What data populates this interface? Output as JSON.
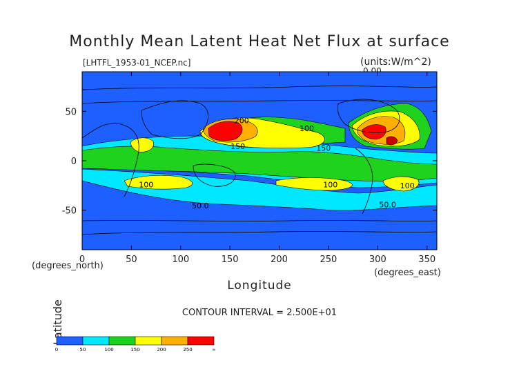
{
  "header": {
    "title": "Monthly Mean Latent Heat Net Flux at surface",
    "file_label": "[LHTFL_1953-01_NCEP.nc]",
    "units_label": "(units:W/m^2)",
    "max_label": "0.00"
  },
  "footer": {
    "contour_interval": "CONTOUR INTERVAL = 2.500E+01"
  },
  "chart_data": {
    "type": "heatmap",
    "title": "Monthly Mean Latent Heat Net Flux at surface",
    "xlabel": "Longitude",
    "ylabel": "Latitude",
    "x_unit_label": "(degrees_east)",
    "y_unit_label": "(degrees_north)",
    "xlim": [
      0,
      360
    ],
    "ylim": [
      -90,
      90
    ],
    "x_ticks": [
      0,
      50,
      100,
      150,
      200,
      250,
      300,
      350
    ],
    "y_ticks": [
      -50,
      0,
      50
    ],
    "contour_labels": [
      {
        "text": "200",
        "lon": 162,
        "lat": 38
      },
      {
        "text": "100",
        "lon": 228,
        "lat": 30
      },
      {
        "text": "150",
        "lon": 158,
        "lat": 12
      },
      {
        "text": "150",
        "lon": 245,
        "lat": 10
      },
      {
        "text": "100",
        "lon": 65,
        "lat": -27
      },
      {
        "text": "100",
        "lon": 252,
        "lat": -27
      },
      {
        "text": "100",
        "lon": 330,
        "lat": -28
      },
      {
        "text": "50.0",
        "lon": 120,
        "lat": -48
      },
      {
        "text": "50.0",
        "lon": 310,
        "lat": -47
      }
    ],
    "colorbar": {
      "bins": [
        {
          "range": "0-50",
          "color": "#1e5fff"
        },
        {
          "range": "50-100",
          "color": "#00e8ff"
        },
        {
          "range": "100-150",
          "color": "#1ed21e"
        },
        {
          "range": "150-200",
          "color": "#ffff00"
        },
        {
          "range": "200-250",
          "color": "#ffb000"
        },
        {
          "range": "250+",
          "color": "#ff0000"
        }
      ],
      "tick_labels": [
        "0",
        "50",
        "100",
        "150",
        "200",
        "250",
        "∞"
      ]
    },
    "colors": {
      "band_0_50": "#1e5fff",
      "band_50_100": "#00e8ff",
      "band_100_150": "#1ed21e",
      "band_150_200": "#ffff00",
      "band_200_250": "#ffb000",
      "band_250_up": "#ff0000",
      "band_max_core": "#cc0000"
    }
  }
}
